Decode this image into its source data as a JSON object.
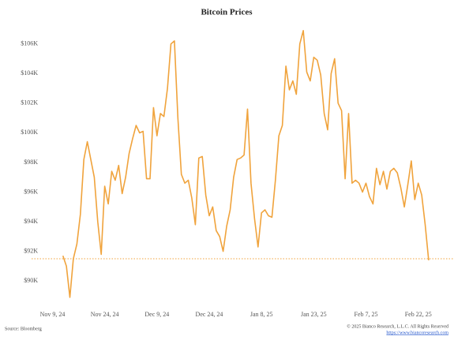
{
  "chart_data": {
    "type": "line",
    "title": "Bitcoin Prices",
    "x": [
      "2024-11-12",
      "2024-11-13",
      "2024-11-14",
      "2024-11-15",
      "2024-11-16",
      "2024-11-17",
      "2024-11-18",
      "2024-11-19",
      "2024-11-20",
      "2024-11-21",
      "2024-11-22",
      "2024-11-23",
      "2024-11-24",
      "2024-11-25",
      "2024-11-26",
      "2024-11-27",
      "2024-11-28",
      "2024-11-29",
      "2024-11-30",
      "2024-12-01",
      "2024-12-02",
      "2024-12-03",
      "2024-12-04",
      "2024-12-05",
      "2024-12-06",
      "2024-12-07",
      "2024-12-08",
      "2024-12-09",
      "2024-12-10",
      "2024-12-11",
      "2024-12-12",
      "2024-12-13",
      "2024-12-14",
      "2024-12-15",
      "2024-12-16",
      "2024-12-17",
      "2024-12-18",
      "2024-12-19",
      "2024-12-20",
      "2024-12-21",
      "2024-12-22",
      "2024-12-23",
      "2024-12-24",
      "2024-12-25",
      "2024-12-26",
      "2024-12-27",
      "2024-12-28",
      "2024-12-29",
      "2024-12-30",
      "2024-12-31",
      "2025-01-01",
      "2025-01-02",
      "2025-01-03",
      "2025-01-04",
      "2025-01-05",
      "2025-01-06",
      "2025-01-07",
      "2025-01-08",
      "2025-01-09",
      "2025-01-10",
      "2025-01-11",
      "2025-01-12",
      "2025-01-13",
      "2025-01-14",
      "2025-01-15",
      "2025-01-16",
      "2025-01-17",
      "2025-01-18",
      "2025-01-19",
      "2025-01-20",
      "2025-01-21",
      "2025-01-22",
      "2025-01-23",
      "2025-01-24",
      "2025-01-25",
      "2025-01-26",
      "2025-01-27",
      "2025-01-28",
      "2025-01-29",
      "2025-01-30",
      "2025-01-31",
      "2025-02-01",
      "2025-02-02",
      "2025-02-03",
      "2025-02-04",
      "2025-02-05",
      "2025-02-06",
      "2025-02-07",
      "2025-02-08",
      "2025-02-09",
      "2025-02-10",
      "2025-02-11",
      "2025-02-12",
      "2025-02-13",
      "2025-02-14",
      "2025-02-15",
      "2025-02-16",
      "2025-02-17",
      "2025-02-18",
      "2025-02-19",
      "2025-02-20",
      "2025-02-21",
      "2025-02-22",
      "2025-02-23",
      "2025-02-24",
      "2025-02-25"
    ],
    "values": [
      91.7,
      91.0,
      88.9,
      91.5,
      92.5,
      94.5,
      98.2,
      99.4,
      98.2,
      97.0,
      94.0,
      91.8,
      96.4,
      95.2,
      97.4,
      96.8,
      97.8,
      95.9,
      97.0,
      98.6,
      99.6,
      100.5,
      100.0,
      100.1,
      96.9,
      96.9,
      101.7,
      99.8,
      101.3,
      101.1,
      103.0,
      106.0,
      106.2,
      101.0,
      97.2,
      96.6,
      96.8,
      95.6,
      93.8,
      98.3,
      98.4,
      95.8,
      94.4,
      95.0,
      93.4,
      93.0,
      92.0,
      93.7,
      94.8,
      97.0,
      98.2,
      98.3,
      98.5,
      101.6,
      96.6,
      94.2,
      92.3,
      94.6,
      94.8,
      94.4,
      94.3,
      96.8,
      99.8,
      100.5,
      104.5,
      102.9,
      103.5,
      102.6,
      106.0,
      106.9,
      104.1,
      103.5,
      105.1,
      104.9,
      103.9,
      101.3,
      100.2,
      104.0,
      105.0,
      102.0,
      101.5,
      96.9,
      101.3,
      96.6,
      96.8,
      96.6,
      96.0,
      96.6,
      95.7,
      95.2,
      97.6,
      96.5,
      97.4,
      96.2,
      97.4,
      97.6,
      97.3,
      96.3,
      95.0,
      96.5,
      98.1,
      95.5,
      96.6,
      95.8,
      93.8,
      91.4
    ],
    "color": "#f0a33c",
    "ref_line": 91.5,
    "xlim": [
      "2024-11-03",
      "2025-03-02"
    ],
    "xticks": [
      {
        "value": "2024-11-09",
        "label": "Nov 9, 24"
      },
      {
        "value": "2024-11-24",
        "label": "Nov 24, 24"
      },
      {
        "value": "2024-12-09",
        "label": "Dec 9, 24"
      },
      {
        "value": "2024-12-24",
        "label": "Dec 24, 24"
      },
      {
        "value": "2025-01-08",
        "label": "Jan 8, 25"
      },
      {
        "value": "2025-01-23",
        "label": "Jan 23, 25"
      },
      {
        "value": "2025-02-07",
        "label": "Feb 7, 25"
      },
      {
        "value": "2025-02-22",
        "label": "Feb 22, 25"
      }
    ],
    "ylim": [
      88.2,
      107.1
    ],
    "yticks": [
      {
        "value": 90,
        "label": "$90K"
      },
      {
        "value": 92,
        "label": "$92K"
      },
      {
        "value": 94,
        "label": "$94K"
      },
      {
        "value": 96,
        "label": "$96K"
      },
      {
        "value": 98,
        "label": "$98K"
      },
      {
        "value": 100,
        "label": "$100K"
      },
      {
        "value": 102,
        "label": "$102K"
      },
      {
        "value": 104,
        "label": "$104K"
      },
      {
        "value": 106,
        "label": "$106K"
      }
    ],
    "source": "Source: Bloomberg",
    "copyright": "© 2025 Bianco Research, L.L.C. All Rights Reserved",
    "url": "https://www.biancoresearch.com"
  }
}
